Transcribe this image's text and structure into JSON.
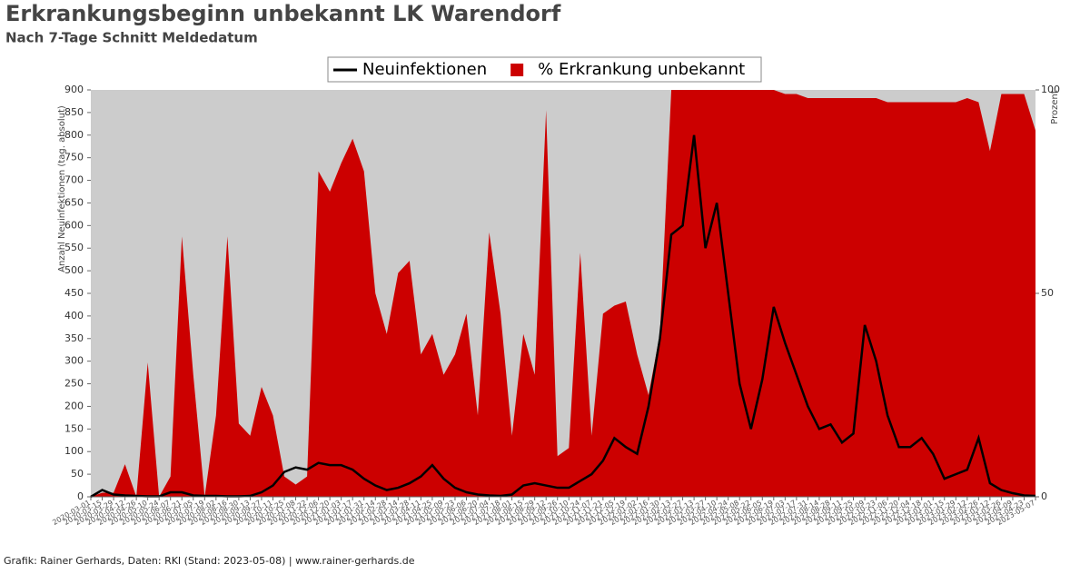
{
  "chart_data": {
    "type": "area-line",
    "title": "Erkrankungsbeginn unbekannt LK Warendorf",
    "subtitle": "Nach 7-Tage Schnitt Meldedatum",
    "y_label": "Anzahl Neuinfektionen (tag. absolut)",
    "y2_label": "Prozent",
    "footer": "Grafik: Rainer Gerhards, Daten: RKI (Stand: 2023-05-08) | www.rainer-gerhards.de",
    "x": [
      "2020-03-01",
      "2020-03-15",
      "2020-03-29",
      "2020-04-12",
      "2020-04-26",
      "2020-05-10",
      "2020-05-24",
      "2020-06-07",
      "2020-06-21",
      "2020-07-05",
      "2020-07-19",
      "2020-08-02",
      "2020-08-16",
      "2020-08-30",
      "2020-09-13",
      "2020-09-27",
      "2020-10-11",
      "2020-10-25",
      "2020-11-08",
      "2020-11-22",
      "2020-12-06",
      "2020-12-20",
      "2021-01-03",
      "2021-01-17",
      "2021-01-31",
      "2021-02-14",
      "2021-02-28",
      "2021-03-14",
      "2021-03-28",
      "2021-04-11",
      "2021-04-25",
      "2021-05-09",
      "2021-05-23",
      "2021-06-06",
      "2021-06-20",
      "2021-07-04",
      "2021-07-18",
      "2021-08-01",
      "2021-08-15",
      "2021-08-29",
      "2021-09-12",
      "2021-09-26",
      "2021-10-10",
      "2021-10-24",
      "2021-11-07",
      "2021-11-21",
      "2021-12-05",
      "2021-12-19",
      "2022-01-02",
      "2022-01-16",
      "2022-01-30",
      "2022-02-13",
      "2022-02-27",
      "2022-03-13",
      "2022-03-27",
      "2022-04-10",
      "2022-04-24",
      "2022-05-08",
      "2022-05-22",
      "2022-06-05",
      "2022-06-19",
      "2022-07-03",
      "2022-07-17",
      "2022-07-31",
      "2022-08-14",
      "2022-08-28",
      "2022-09-11",
      "2022-09-25",
      "2022-10-09",
      "2022-10-23",
      "2022-11-06",
      "2022-11-20",
      "2022-12-04",
      "2022-12-18",
      "2023-01-01",
      "2023-01-15",
      "2023-01-29",
      "2023-02-12",
      "2023-02-26",
      "2023-03-12",
      "2023-03-26",
      "2023-04-09",
      "2023-04-23",
      "2023-05-07"
    ],
    "series": [
      {
        "name": "Neuinfektionen",
        "color": "#000000",
        "kind": "line",
        "values": [
          0,
          15,
          5,
          3,
          2,
          1,
          1,
          10,
          10,
          3,
          2,
          2,
          1,
          1,
          2,
          10,
          25,
          55,
          65,
          60,
          75,
          70,
          70,
          60,
          40,
          25,
          15,
          20,
          30,
          45,
          70,
          40,
          20,
          10,
          5,
          3,
          2,
          5,
          25,
          30,
          25,
          20,
          20,
          35,
          50,
          80,
          130,
          110,
          95,
          200,
          350,
          580,
          600,
          800,
          550,
          650,
          450,
          250,
          150,
          260,
          420,
          340,
          270,
          200,
          150,
          160,
          120,
          140,
          380,
          300,
          180,
          110,
          110,
          130,
          95,
          40,
          50,
          60,
          130,
          30,
          15,
          8,
          3,
          2
        ]
      },
      {
        "name": "% Erkrankung unbekannt",
        "color": "#cc0000",
        "kind": "area",
        "axis": "y2",
        "values": [
          0,
          1,
          1,
          8,
          0,
          33,
          0,
          5,
          64,
          30,
          0,
          20,
          64,
          18,
          15,
          27,
          20,
          5,
          3,
          5,
          80,
          75,
          82,
          88,
          80,
          50,
          40,
          55,
          58,
          35,
          40,
          30,
          35,
          45,
          20,
          65,
          45,
          15,
          40,
          30,
          95,
          10,
          12,
          60,
          15,
          45,
          47,
          48,
          35,
          25,
          40,
          100,
          100,
          100,
          100,
          100,
          100,
          100,
          100,
          100,
          100,
          99,
          99,
          98,
          98,
          98,
          98,
          98,
          98,
          98,
          97,
          97,
          97,
          97,
          97,
          97,
          97,
          98,
          97,
          85,
          99,
          99,
          99,
          90
        ]
      }
    ],
    "ylim": [
      0,
      900
    ],
    "yticks": [
      0,
      50,
      100,
      150,
      200,
      250,
      300,
      350,
      400,
      450,
      500,
      550,
      600,
      650,
      700,
      750,
      800,
      850,
      900
    ],
    "y2lim": [
      0,
      100
    ],
    "y2ticks": [
      0,
      50,
      100
    ],
    "plot_background": "#cccccc",
    "legend": "top"
  }
}
